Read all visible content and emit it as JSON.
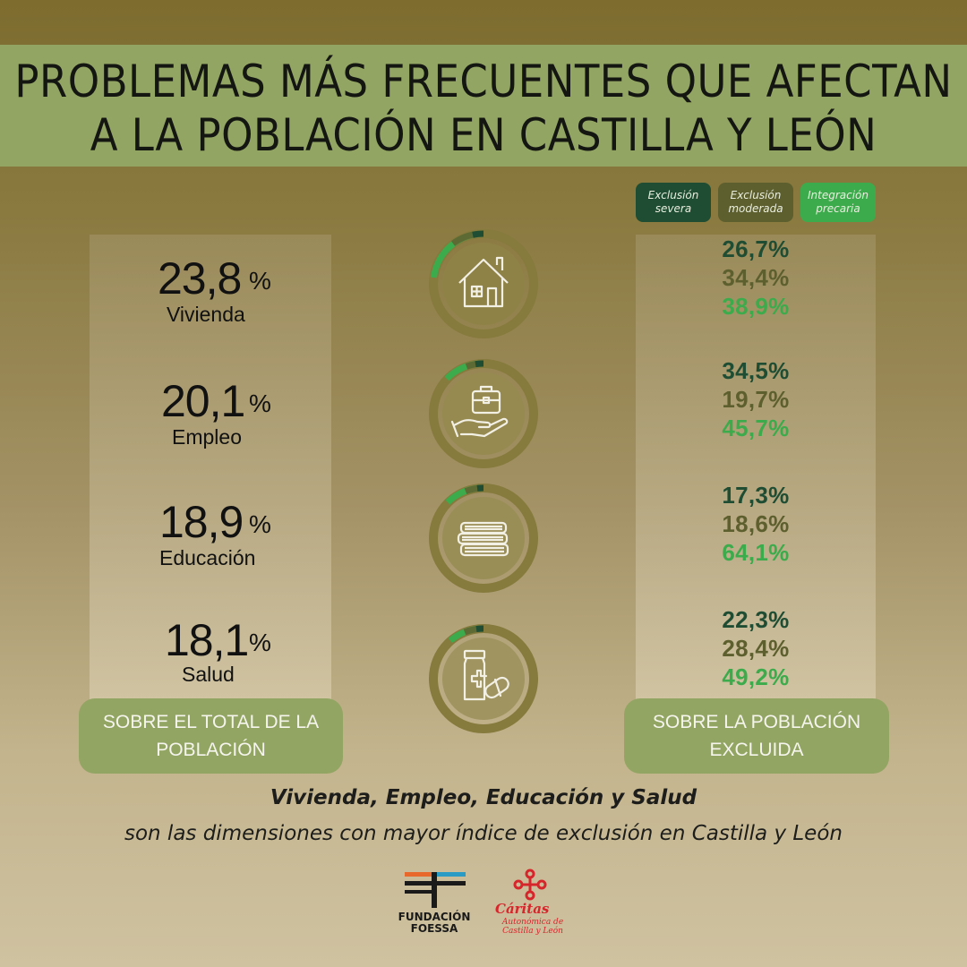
{
  "title": {
    "line1": "PROBLEMAS MÁS FRECUENTES  QUE AFECTAN",
    "line2": "A LA POBLACIÓN EN CASTILLA Y LEÓN"
  },
  "legend": {
    "severa": "Exclusión severa",
    "moderada": "Exclusión moderada",
    "precaria": "Integración precaria"
  },
  "colors": {
    "severa": "#1f4d33",
    "moderada": "#5d5f2e",
    "precaria": "#3cab4c",
    "band": "#93a563"
  },
  "chart_data": {
    "type": "table",
    "title": "PROBLEMAS MÁS FRECUENTES  QUE AFECTAN A LA POBLACIÓN EN CASTILLA Y LEÓN",
    "columns": [
      "Sobre el total de la población",
      "Exclusión severa",
      "Exclusión moderada",
      "Integración precaria"
    ],
    "rows": [
      {
        "category": "Vivienda",
        "icon": "house-icon",
        "total": "23,8",
        "severa": "26,7%",
        "moderada": "34,4%",
        "precaria": "38,9%"
      },
      {
        "category": "Empleo",
        "icon": "briefcase-hand-icon",
        "total": "20,1",
        "severa": "34,5%",
        "moderada": "19,7%",
        "precaria": "45,7%"
      },
      {
        "category": "Educación",
        "icon": "books-icon",
        "total": "18,9",
        "severa": "17,3%",
        "moderada": "18,6%",
        "precaria": "64,1%"
      },
      {
        "category": "Salud",
        "icon": "medicine-icon",
        "total": "18,1",
        "severa": "22,3%",
        "moderada": "28,4%",
        "precaria": "49,2%"
      }
    ],
    "percent_sign": "%"
  },
  "buttons": {
    "left": "SOBRE EL TOTAL DE LA POBLACIÓN",
    "right": "SOBRE LA POBLACIÓN EXCLUIDA"
  },
  "caption": {
    "bold": "Vivienda, Empleo, Educación y Salud",
    "rest": "son las dimensiones con mayor índice de exclusión en Castilla y León"
  },
  "logos": {
    "foessa_line1": "FUNDACIÓN",
    "foessa_line2": "FOESSA",
    "caritas_title": "Cáritas",
    "caritas_line1": "Autonómica de",
    "caritas_line2": "Castilla y León"
  }
}
